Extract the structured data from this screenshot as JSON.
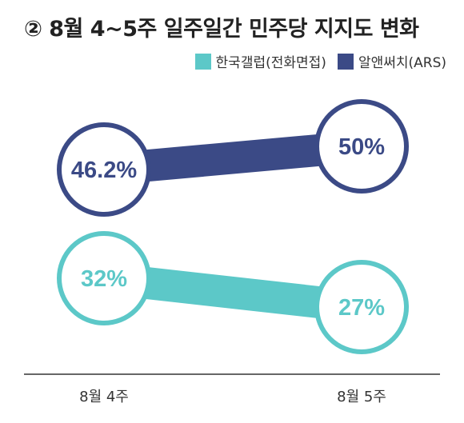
{
  "title": "② 8월 4~5주 일주일간 민주당 지지도 변화",
  "legend": [
    {
      "name": "한국갤럽(전화면접)",
      "color": "#5cc8c8"
    },
    {
      "name": "알앤써치(ARS)",
      "color": "#3b4a86"
    }
  ],
  "chart_data": {
    "type": "line",
    "title": "② 8월 4~5주 일주일간 민주당 지지도 변화",
    "categories": [
      "8월 4주",
      "8월 5주"
    ],
    "series": [
      {
        "name": "알앤써치(ARS)",
        "values": [
          46.2,
          50
        ],
        "labels": [
          "46.2%",
          "50%"
        ],
        "color": "#3b4a86"
      },
      {
        "name": "한국갤럽(전화면접)",
        "values": [
          32,
          27
        ],
        "labels": [
          "32%",
          "27%"
        ],
        "color": "#5cc8c8"
      }
    ],
    "xlabel": "",
    "ylabel": "",
    "grid": false,
    "legend_position": "top-right"
  }
}
